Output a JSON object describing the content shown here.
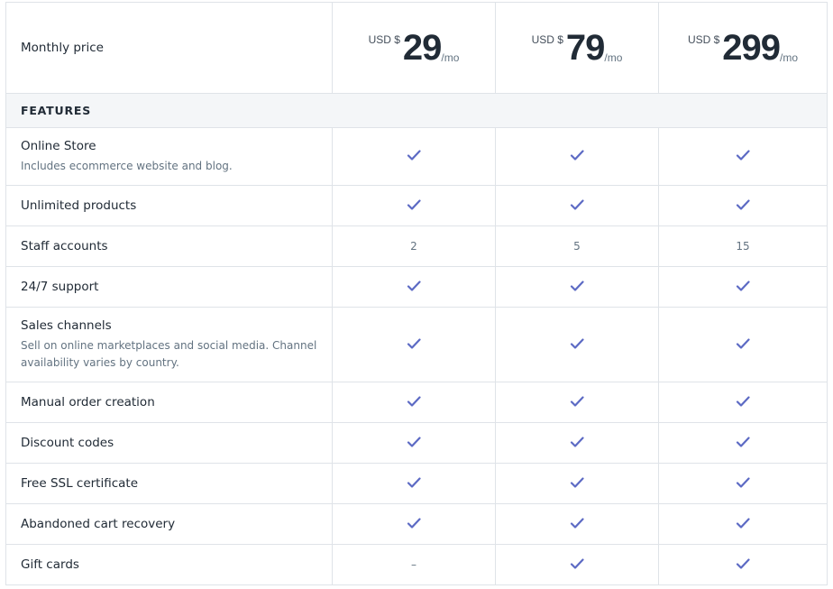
{
  "header": {
    "label": "Monthly price",
    "plans": [
      {
        "currency": "USD $",
        "amount": "29",
        "period": "/mo"
      },
      {
        "currency": "USD $",
        "amount": "79",
        "period": "/mo"
      },
      {
        "currency": "USD $",
        "amount": "299",
        "period": "/mo"
      }
    ]
  },
  "section_title": "FEATURES",
  "accent_color": "#5c6ac4",
  "icons": {
    "included": "check-icon",
    "not_included": "dash"
  },
  "features": [
    {
      "name": "Online Store",
      "desc": "Includes ecommerce website and blog.",
      "values": [
        "check",
        "check",
        "check"
      ]
    },
    {
      "name": "Unlimited products",
      "values": [
        "check",
        "check",
        "check"
      ]
    },
    {
      "name": "Staff accounts",
      "values": [
        "2",
        "5",
        "15"
      ]
    },
    {
      "name": "24/7 support",
      "values": [
        "check",
        "check",
        "check"
      ]
    },
    {
      "name": "Sales channels",
      "desc": "Sell on online marketplaces and social media. Channel availability varies by country.",
      "values": [
        "check",
        "check",
        "check"
      ]
    },
    {
      "name": "Manual order creation",
      "values": [
        "check",
        "check",
        "check"
      ]
    },
    {
      "name": "Discount codes",
      "values": [
        "check",
        "check",
        "check"
      ]
    },
    {
      "name": "Free SSL certificate",
      "values": [
        "check",
        "check",
        "check"
      ]
    },
    {
      "name": "Abandoned cart recovery",
      "values": [
        "check",
        "check",
        "check"
      ]
    },
    {
      "name": "Gift cards",
      "values": [
        "–",
        "check",
        "check"
      ]
    }
  ]
}
